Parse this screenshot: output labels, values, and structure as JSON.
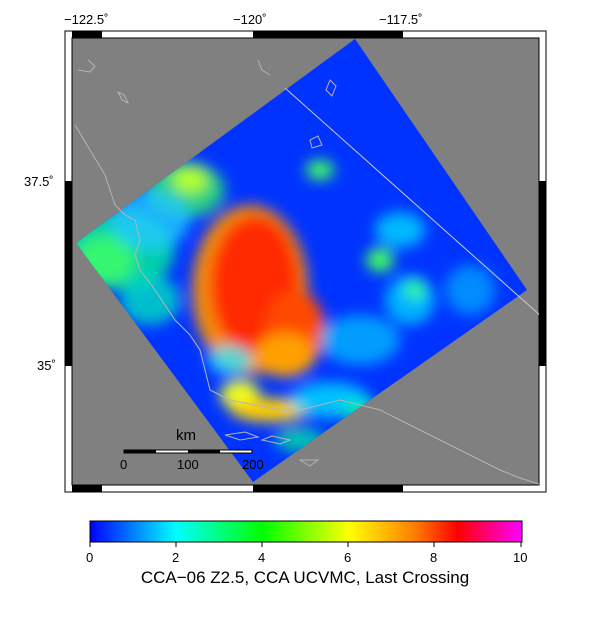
{
  "map": {
    "top_lon_labels": [
      "−122.5˚",
      "−120˚",
      "−117.5˚"
    ],
    "left_lat_labels": [
      "37.5˚",
      "35˚"
    ],
    "scale_bar": {
      "title": "km",
      "ticks": [
        "0",
        "100",
        "200"
      ]
    },
    "colors": {
      "land_background": "#808080",
      "model_base": "#0033ff",
      "coastline": "#b4b4b4",
      "frame": "#000000"
    }
  },
  "colorbar": {
    "min": 0,
    "max": 10,
    "tick_labels": [
      "0",
      "2",
      "4",
      "6",
      "8",
      "10"
    ],
    "title": "CCA−06 Z2.5, CCA UCVMC, Last Crossing",
    "colors": [
      "#0000ff",
      "#00ffff",
      "#00ff00",
      "#ffff00",
      "#ff8000",
      "#ff0000",
      "#ff00ff"
    ]
  }
}
